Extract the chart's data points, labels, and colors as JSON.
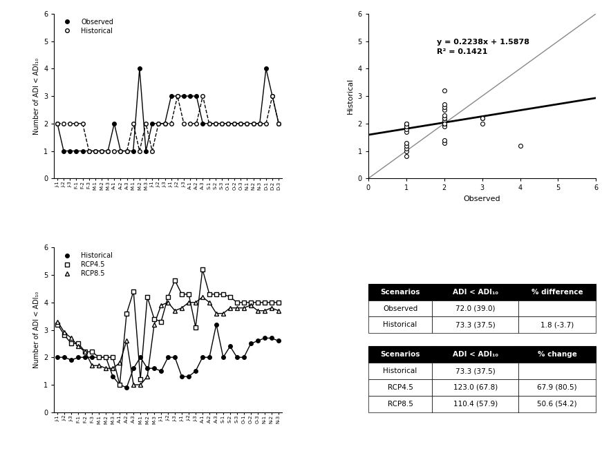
{
  "x_labels_top": [
    "J-1",
    "J-2",
    "J-3",
    "F-1",
    "F-2",
    "F-3",
    "M-1",
    "M-2",
    "M-3",
    "A-1",
    "A-2",
    "A-3",
    "M-1",
    "M-2",
    "M-3",
    "J-1",
    "J-2",
    "J-3",
    "J-1",
    "J-2",
    "J-3",
    "A-1",
    "A-2",
    "A-3",
    "S-1",
    "S-2",
    "S-3",
    "O-1",
    "O-2",
    "O-3",
    "N-1",
    "N-2",
    "N-3",
    "D-1",
    "D-2",
    "D-3"
  ],
  "x_labels_bot": [
    "J-1",
    "J-2",
    "J-3",
    "F-1",
    "F-2",
    "F-3",
    "M-1",
    "M-2",
    "M-3",
    "A-1",
    "A-2",
    "A-3",
    "M-1",
    "M-2",
    "M-3",
    "J-1",
    "J-2",
    "J-3",
    "J-1",
    "J-2",
    "J-3",
    "A-1",
    "A-2",
    "A-3",
    "S-1",
    "S-2",
    "S-3",
    "O-1",
    "O-2",
    "O-3",
    "N-1",
    "N-2",
    "N-3"
  ],
  "observed_top": [
    2,
    1,
    1,
    1,
    1,
    1,
    1,
    1,
    1,
    2,
    1,
    1,
    1,
    4,
    1,
    2,
    2,
    2,
    3,
    3,
    3,
    3,
    3,
    2,
    2,
    2,
    2,
    2,
    2,
    2,
    2,
    2,
    2,
    4,
    3,
    2
  ],
  "historical_top": [
    2,
    2,
    2,
    2,
    2,
    1,
    1,
    1,
    1,
    1,
    1,
    1,
    2,
    1,
    2,
    1,
    2,
    2,
    2,
    3,
    2,
    2,
    2,
    3,
    2,
    2,
    2,
    2,
    2,
    2,
    2,
    2,
    2,
    2,
    3,
    2
  ],
  "historical_bottom": [
    2,
    2,
    1.9,
    2,
    2,
    2,
    2,
    2,
    1.3,
    1,
    0.9,
    1.6,
    2,
    1.6,
    1.6,
    1.5,
    2,
    2,
    1.3,
    1.3,
    1.5,
    2,
    2,
    3.2,
    2,
    2.4,
    2,
    2,
    2.5,
    2.6,
    2.7,
    2.7,
    2.6
  ],
  "rcp45": [
    3.2,
    2.8,
    2.5,
    2.5,
    2.2,
    2.2,
    2,
    2,
    2,
    1,
    3.6,
    4.4,
    1.2,
    4.2,
    3.4,
    3.3,
    4.2,
    4.8,
    4.3,
    4.3,
    3.1,
    5.2,
    4.3,
    4.3,
    4.3,
    4.2,
    4,
    4,
    4,
    4,
    4,
    4,
    4
  ],
  "rcp85": [
    3.3,
    2.9,
    2.7,
    2.4,
    2.2,
    1.7,
    1.7,
    1.6,
    1.6,
    1.8,
    2.6,
    1,
    1,
    1.3,
    3.2,
    3.9,
    4,
    3.7,
    3.8,
    4,
    4,
    4.2,
    4,
    3.6,
    3.6,
    3.8,
    3.8,
    3.8,
    3.9,
    3.7,
    3.7,
    3.8,
    3.7
  ],
  "scatter_obs": [
    1,
    1,
    1,
    1,
    1,
    1,
    1,
    1,
    1,
    1,
    1,
    2,
    2,
    2,
    2,
    2,
    2,
    2,
    2,
    2,
    2,
    2,
    2,
    2,
    2,
    2,
    2,
    2,
    2,
    2,
    3,
    3,
    3,
    4
  ],
  "scatter_hist": [
    0.8,
    1.0,
    1.1,
    1.2,
    1.3,
    1.7,
    1.8,
    1.9,
    1.9,
    2.0,
    2.0,
    1.3,
    1.4,
    1.9,
    2.0,
    2.0,
    2.0,
    2.1,
    2.2,
    2.2,
    2.3,
    2.5,
    2.6,
    2.7,
    2.0,
    2.0,
    2.0,
    3.2,
    2.0,
    2.0,
    2.2,
    2.2,
    2.0,
    1.2
  ],
  "reg_slope": 0.2238,
  "reg_intercept": 1.5878,
  "r2": 0.1421,
  "table1_headers": [
    "Scenarios",
    "ADI < ADI₁₀",
    "% difference"
  ],
  "table1_rows": [
    [
      "Observed",
      "72.0 (39.0)",
      ""
    ],
    [
      "Historical",
      "73.3 (37.5)",
      "1.8 (-3.7)"
    ]
  ],
  "table2_headers": [
    "Scenarios",
    "ADI < ADI₁₀",
    "% change"
  ],
  "table2_rows": [
    [
      "Historical",
      "73.3 (37.5)",
      ""
    ],
    [
      "RCP4.5",
      "123.0 (67.8)",
      "67.9 (80.5)"
    ],
    [
      "RCP8.5",
      "110.4 (57.9)",
      "50.6 (54.2)"
    ]
  ]
}
